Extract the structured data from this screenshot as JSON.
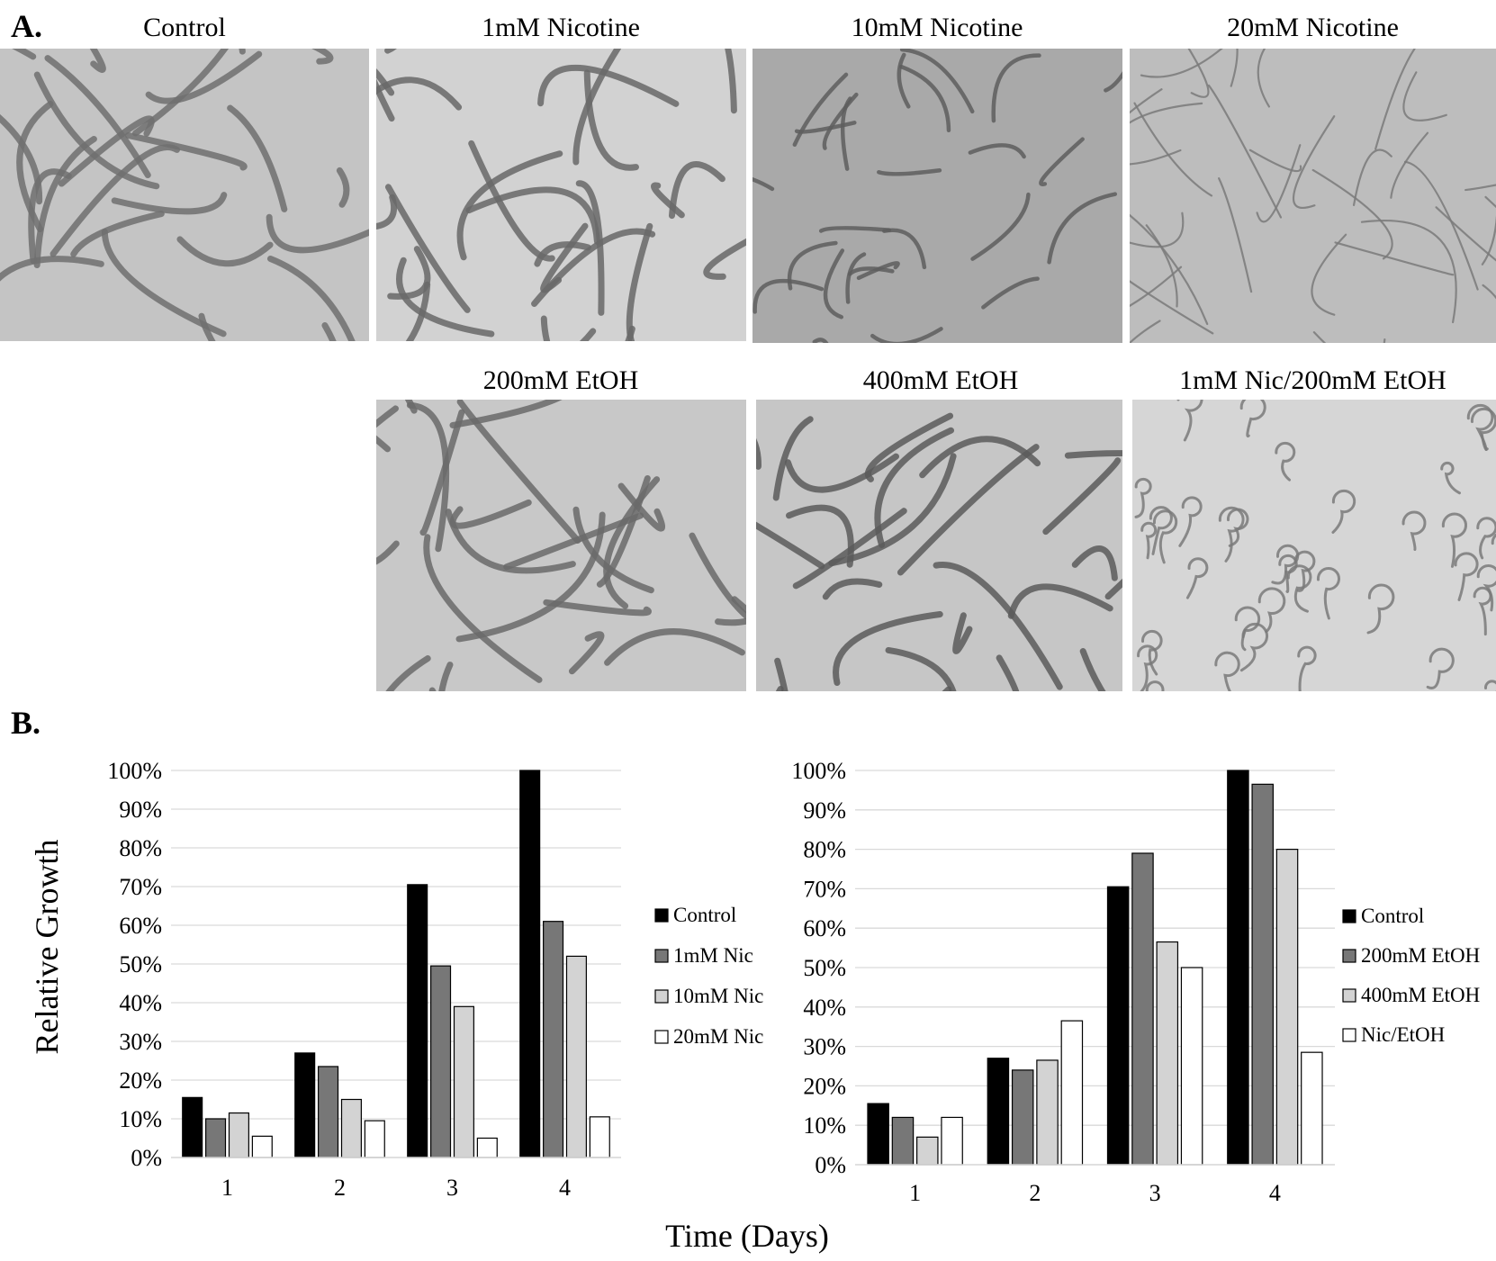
{
  "panel_a_label": "A.",
  "panel_b_label": "B.",
  "images": [
    {
      "title": "Control",
      "tone": "#c4c4c4",
      "worm": "#707070",
      "kind": "long"
    },
    {
      "title": "1mM Nicotine",
      "tone": "#d2d2d2",
      "worm": "#686868",
      "kind": "long"
    },
    {
      "title": "10mM Nicotine",
      "tone": "#a9a9a9",
      "worm": "#5e5e5e",
      "kind": "medium"
    },
    {
      "title": "20mM Nicotine",
      "tone": "#bdbdbd",
      "worm": "#7a7a7a",
      "kind": "thin"
    },
    {
      "title": "200mM EtOH",
      "tone": "#c8c8c8",
      "worm": "#6a6a6a",
      "kind": "long"
    },
    {
      "title": "400mM EtOH",
      "tone": "#c6c6c6",
      "worm": "#5a5a5a",
      "kind": "long"
    },
    {
      "title": "1mM Nic/200mM EtOH",
      "tone": "#d6d6d6",
      "worm": "#7a7a7a",
      "kind": "curl"
    }
  ],
  "shared_ylabel": "Relative Growth",
  "shared_xlabel": "Time (Days)",
  "chart_data": [
    {
      "type": "bar",
      "categories": [
        "1",
        "2",
        "3",
        "4"
      ],
      "ylim": [
        0,
        100
      ],
      "yticks": [
        "0%",
        "10%",
        "20%",
        "30%",
        "40%",
        "50%",
        "60%",
        "70%",
        "80%",
        "90%",
        "100%"
      ],
      "grid": true,
      "legend_position": "right",
      "series": [
        {
          "name": "Control",
          "color": "#000000",
          "values": [
            15.5,
            27,
            70.5,
            100
          ]
        },
        {
          "name": "1mM Nic",
          "color": "#777777",
          "values": [
            10,
            23.5,
            49.5,
            61
          ]
        },
        {
          "name": "10mM Nic",
          "color": "#d3d3d3",
          "values": [
            11.5,
            15,
            39,
            52
          ]
        },
        {
          "name": "20mM Nic",
          "color": "#ffffff",
          "values": [
            5.5,
            9.5,
            5,
            10.5
          ]
        }
      ]
    },
    {
      "type": "bar",
      "categories": [
        "1",
        "2",
        "3",
        "4"
      ],
      "ylim": [
        0,
        100
      ],
      "yticks": [
        "0%",
        "10%",
        "20%",
        "30%",
        "40%",
        "50%",
        "60%",
        "70%",
        "80%",
        "90%",
        "100%"
      ],
      "grid": true,
      "legend_position": "right",
      "series": [
        {
          "name": "Control",
          "color": "#000000",
          "values": [
            15.5,
            27,
            70.5,
            100
          ]
        },
        {
          "name": "200mM EtOH",
          "color": "#777777",
          "values": [
            12,
            24,
            79,
            96.5
          ]
        },
        {
          "name": "400mM EtOH",
          "color": "#d3d3d3",
          "values": [
            7,
            26.5,
            56.5,
            80
          ]
        },
        {
          "name": "Nic/EtOH",
          "color": "#ffffff",
          "values": [
            12,
            36.5,
            50,
            28.5
          ]
        }
      ]
    }
  ]
}
